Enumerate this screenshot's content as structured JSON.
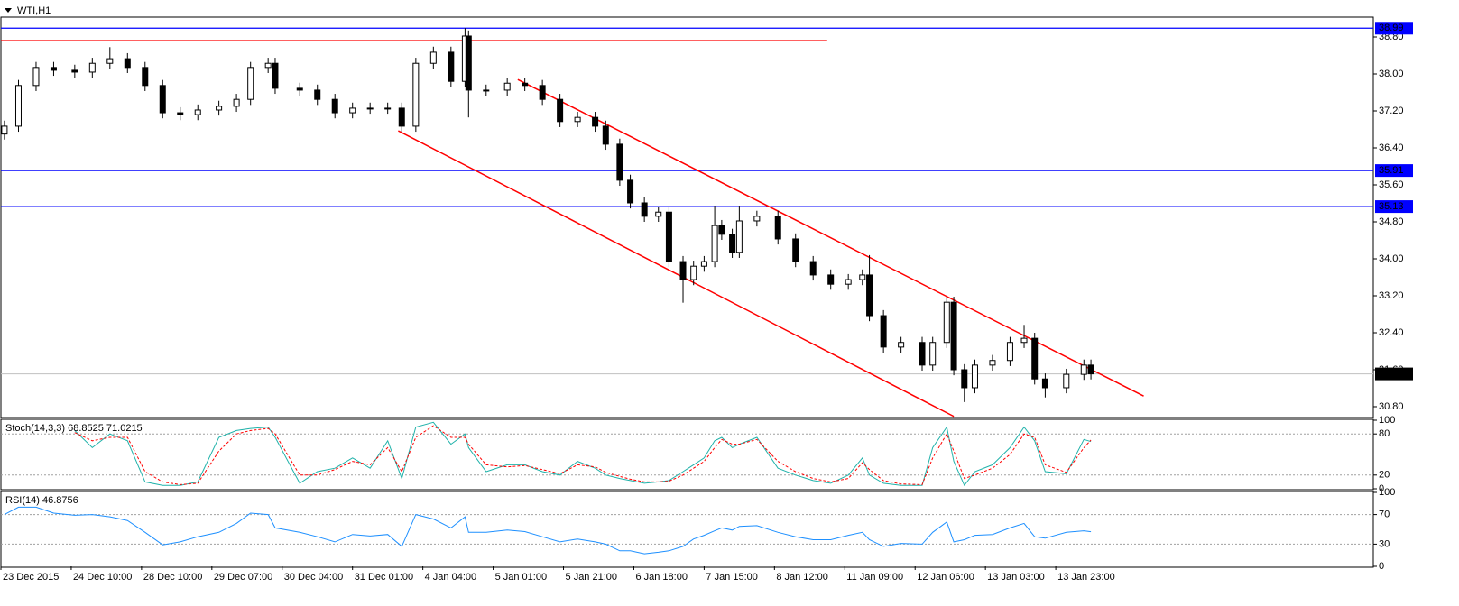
{
  "chart_data": [
    {
      "type": "candlestick",
      "title": "WTI,H1",
      "x": [
        1,
        5,
        10,
        15,
        21,
        26,
        31,
        36,
        41,
        46,
        51,
        56,
        62,
        67,
        71,
        76,
        78,
        85,
        90,
        95,
        100,
        105,
        110,
        114,
        118,
        123,
        128,
        132,
        133,
        138,
        144,
        149,
        154,
        159,
        164,
        169,
        172,
        176,
        179,
        183,
        187,
        190,
        194,
        197,
        200,
        203,
        205,
        208,
        210,
        215,
        221,
        226,
        231,
        236,
        241,
        245,
        247,
        251,
        256,
        262,
        265,
        269,
        271,
        274,
        277,
        282,
        287,
        291,
        294,
        297,
        303,
        308,
        310
      ],
      "open": [
        36.7,
        36.87,
        37.75,
        38.14,
        38.08,
        38.04,
        38.23,
        38.33,
        38.14,
        37.75,
        37.16,
        37.12,
        37.22,
        37.3,
        37.45,
        38.14,
        38.23,
        37.69,
        37.65,
        37.45,
        37.16,
        37.26,
        37.26,
        37.26,
        36.87,
        38.23,
        38.47,
        37.84,
        38.82,
        37.65,
        37.65,
        37.8,
        37.75,
        37.45,
        36.97,
        37.06,
        36.87,
        36.48,
        35.7,
        35.21,
        34.92,
        35.01,
        33.94,
        33.55,
        33.84,
        33.94,
        34.72,
        34.53,
        34.14,
        34.82,
        34.92,
        34.43,
        33.94,
        33.65,
        33.45,
        33.55,
        33.65,
        32.77,
        32.09,
        32.19,
        31.7,
        32.19,
        33.06,
        31.6,
        31.21,
        31.7,
        31.8,
        32.19,
        32.28,
        31.4,
        31.21,
        31.5,
        31.7
      ],
      "high": [
        36.99,
        37.87,
        38.26,
        38.26,
        38.2,
        38.35,
        38.58,
        38.45,
        38.26,
        37.87,
        37.28,
        37.34,
        37.42,
        37.57,
        38.26,
        38.35,
        38.35,
        37.81,
        37.77,
        37.57,
        37.38,
        37.38,
        37.38,
        37.38,
        38.35,
        38.59,
        38.59,
        38.99,
        38.94,
        37.77,
        37.92,
        37.92,
        37.87,
        37.57,
        37.18,
        37.18,
        36.99,
        36.6,
        35.82,
        35.33,
        35.13,
        35.13,
        34.06,
        33.96,
        34.06,
        35.15,
        34.84,
        34.65,
        35.15,
        35.04,
        35.04,
        34.55,
        34.06,
        33.77,
        33.67,
        33.77,
        34.08,
        32.89,
        32.31,
        32.31,
        32.31,
        33.18,
        33.18,
        31.72,
        31.82,
        31.92,
        32.31,
        32.57,
        32.4,
        31.52,
        31.62,
        31.82,
        31.82
      ],
      "low": [
        36.58,
        36.75,
        37.63,
        37.96,
        37.92,
        37.92,
        38.11,
        38.02,
        37.63,
        37.04,
        37.0,
        37.0,
        37.1,
        37.18,
        37.33,
        38.02,
        37.57,
        37.53,
        37.33,
        37.04,
        37.04,
        37.14,
        37.14,
        36.75,
        36.75,
        38.11,
        37.72,
        37.72,
        37.06,
        37.53,
        37.53,
        37.63,
        37.33,
        36.85,
        36.85,
        36.75,
        36.36,
        35.58,
        35.09,
        34.8,
        34.8,
        33.82,
        33.05,
        33.43,
        33.72,
        33.82,
        34.41,
        34.02,
        34.02,
        34.7,
        34.31,
        33.82,
        33.53,
        33.33,
        33.33,
        33.43,
        32.65,
        31.97,
        31.97,
        31.58,
        31.58,
        32.07,
        31.48,
        30.9,
        31.09,
        31.58,
        31.68,
        32.07,
        31.28,
        31.0,
        31.09,
        31.38,
        31.39
      ],
      "close": [
        36.87,
        37.75,
        38.14,
        38.08,
        38.04,
        38.23,
        38.33,
        38.14,
        37.75,
        37.16,
        37.12,
        37.22,
        37.3,
        37.45,
        38.14,
        38.23,
        37.69,
        37.65,
        37.45,
        37.16,
        37.26,
        37.26,
        37.26,
        36.87,
        38.23,
        38.47,
        37.84,
        38.82,
        37.65,
        37.65,
        37.8,
        37.75,
        37.45,
        36.97,
        37.06,
        36.87,
        36.48,
        35.7,
        35.21,
        34.92,
        35.01,
        33.94,
        33.55,
        33.84,
        33.94,
        34.72,
        34.53,
        34.14,
        34.82,
        34.92,
        34.43,
        33.94,
        33.65,
        33.45,
        33.55,
        33.65,
        32.77,
        32.09,
        32.19,
        31.7,
        32.19,
        33.06,
        31.6,
        31.21,
        31.7,
        31.8,
        32.19,
        32.28,
        31.4,
        31.21,
        31.5,
        31.7,
        31.51
      ],
      "up_color": "#ffffff",
      "down_color": "#000000",
      "xlim": [
        0,
        390.3
      ],
      "xticks": [
        {
          "value": 0,
          "label": "23 Dec 2015"
        },
        {
          "value": 20,
          "label": "24 Dec 10:00"
        },
        {
          "value": 40,
          "label": "28 Dec 10:00"
        },
        {
          "value": 60,
          "label": "29 Dec 07:00"
        },
        {
          "value": 80,
          "label": "30 Dec 04:00"
        },
        {
          "value": 100,
          "label": "31 Dec 01:00"
        },
        {
          "value": 120,
          "label": "4 Jan 04:00"
        },
        {
          "value": 140,
          "label": "5 Jan 01:00"
        },
        {
          "value": 160,
          "label": "5 Jan 21:00"
        },
        {
          "value": 180,
          "label": "6 Jan 18:00"
        },
        {
          "value": 200,
          "label": "7 Jan 15:00"
        },
        {
          "value": 220,
          "label": "8 Jan 12:00"
        },
        {
          "value": 240,
          "label": "11 Jan 09:00"
        },
        {
          "value": 260,
          "label": "12 Jan 06:00"
        },
        {
          "value": 280,
          "label": "13 Jan 03:00"
        },
        {
          "value": 300,
          "label": "13 Jan 23:00"
        }
      ],
      "ylim": [
        30.585,
        39.21
      ],
      "yticks": [
        {
          "value": 30.8,
          "label": "30.80"
        },
        {
          "value": 31.6,
          "label": "31.60"
        },
        {
          "value": 32.4,
          "label": "32.40"
        },
        {
          "value": 33.2,
          "label": "33.20"
        },
        {
          "value": 34.0,
          "label": "34.00"
        },
        {
          "value": 34.8,
          "label": "34.80"
        },
        {
          "value": 35.6,
          "label": "35.60"
        },
        {
          "value": 36.4,
          "label": "36.40"
        },
        {
          "value": 37.2,
          "label": "37.20"
        },
        {
          "value": 38.0,
          "label": "38.00"
        },
        {
          "value": 38.8,
          "label": "38.80"
        }
      ],
      "levels": [
        38.99,
        35.91,
        35.13
      ],
      "level_color": "#0000ff",
      "last_price": 31.51,
      "trendlines": [
        {
          "x": [
            0,
            235
          ],
          "y": [
            38.72,
            38.72
          ],
          "color": "#ff0000"
        },
        {
          "x": [
            147,
            325
          ],
          "y": [
            37.88,
            31.03
          ],
          "color": "#ff0000"
        },
        {
          "x": [
            113,
            271
          ],
          "y": [
            36.77,
            30.59
          ],
          "color": "#ff0000"
        }
      ]
    },
    {
      "type": "line",
      "title": "Stoch(14,3,3) 68.8525 71.0215",
      "series": [
        {
          "color": "#20b2aa",
          "dash": false,
          "values": [
            null,
            null,
            null,
            null,
            85,
            60,
            80,
            70,
            10,
            5,
            5,
            10,
            75,
            85,
            88,
            90,
            75,
            8,
            25,
            30,
            45,
            30,
            70,
            15,
            90,
            97,
            65,
            80,
            60,
            25,
            35,
            35,
            25,
            20,
            40,
            30,
            20,
            15,
            12,
            8,
            10,
            12,
            25,
            35,
            45,
            70,
            75,
            60,
            65,
            75,
            30,
            20,
            12,
            8,
            20,
            45,
            20,
            8,
            5,
            5,
            60,
            90,
            40,
            5,
            25,
            35,
            60,
            90,
            70,
            25,
            22,
            72,
            68.85
          ]
        },
        {
          "color": "#ff0000",
          "dash": true,
          "values": [
            null,
            null,
            null,
            null,
            82,
            70,
            75,
            75,
            25,
            10,
            6,
            8,
            55,
            80,
            85,
            88,
            80,
            20,
            20,
            28,
            40,
            35,
            60,
            25,
            75,
            92,
            75,
            75,
            65,
            35,
            32,
            34,
            28,
            22,
            35,
            32,
            24,
            18,
            14,
            10,
            10,
            11,
            20,
            30,
            40,
            60,
            72,
            65,
            65,
            72,
            40,
            25,
            15,
            10,
            15,
            38,
            28,
            12,
            7,
            6,
            45,
            80,
            55,
            15,
            20,
            30,
            50,
            80,
            75,
            35,
            24,
            60,
            71.02
          ]
        }
      ],
      "ylim": [
        0,
        100
      ],
      "yticks": [
        0,
        20,
        80,
        100
      ]
    },
    {
      "type": "line",
      "title": "RSI(14) 46.8756",
      "series": [
        {
          "color": "#1e90ff",
          "dash": false,
          "values": [
            70,
            80,
            80,
            72,
            69,
            70,
            67,
            62,
            46,
            29,
            33,
            40,
            46,
            58,
            72,
            70,
            52,
            46,
            40,
            33,
            43,
            41,
            43,
            27,
            70,
            64,
            52,
            67,
            46,
            46,
            49,
            47,
            40,
            33,
            37,
            33,
            30,
            21,
            21,
            17,
            19,
            21,
            27,
            37,
            42,
            48,
            52,
            49,
            54,
            55,
            46,
            40,
            36,
            36,
            42,
            46,
            36,
            27,
            31,
            30,
            46,
            60,
            33,
            36,
            42,
            43,
            52,
            58,
            40,
            38,
            46,
            48,
            46.88
          ]
        }
      ],
      "ylim": [
        0,
        100
      ],
      "yticks": [
        0,
        30,
        70,
        100
      ]
    }
  ]
}
